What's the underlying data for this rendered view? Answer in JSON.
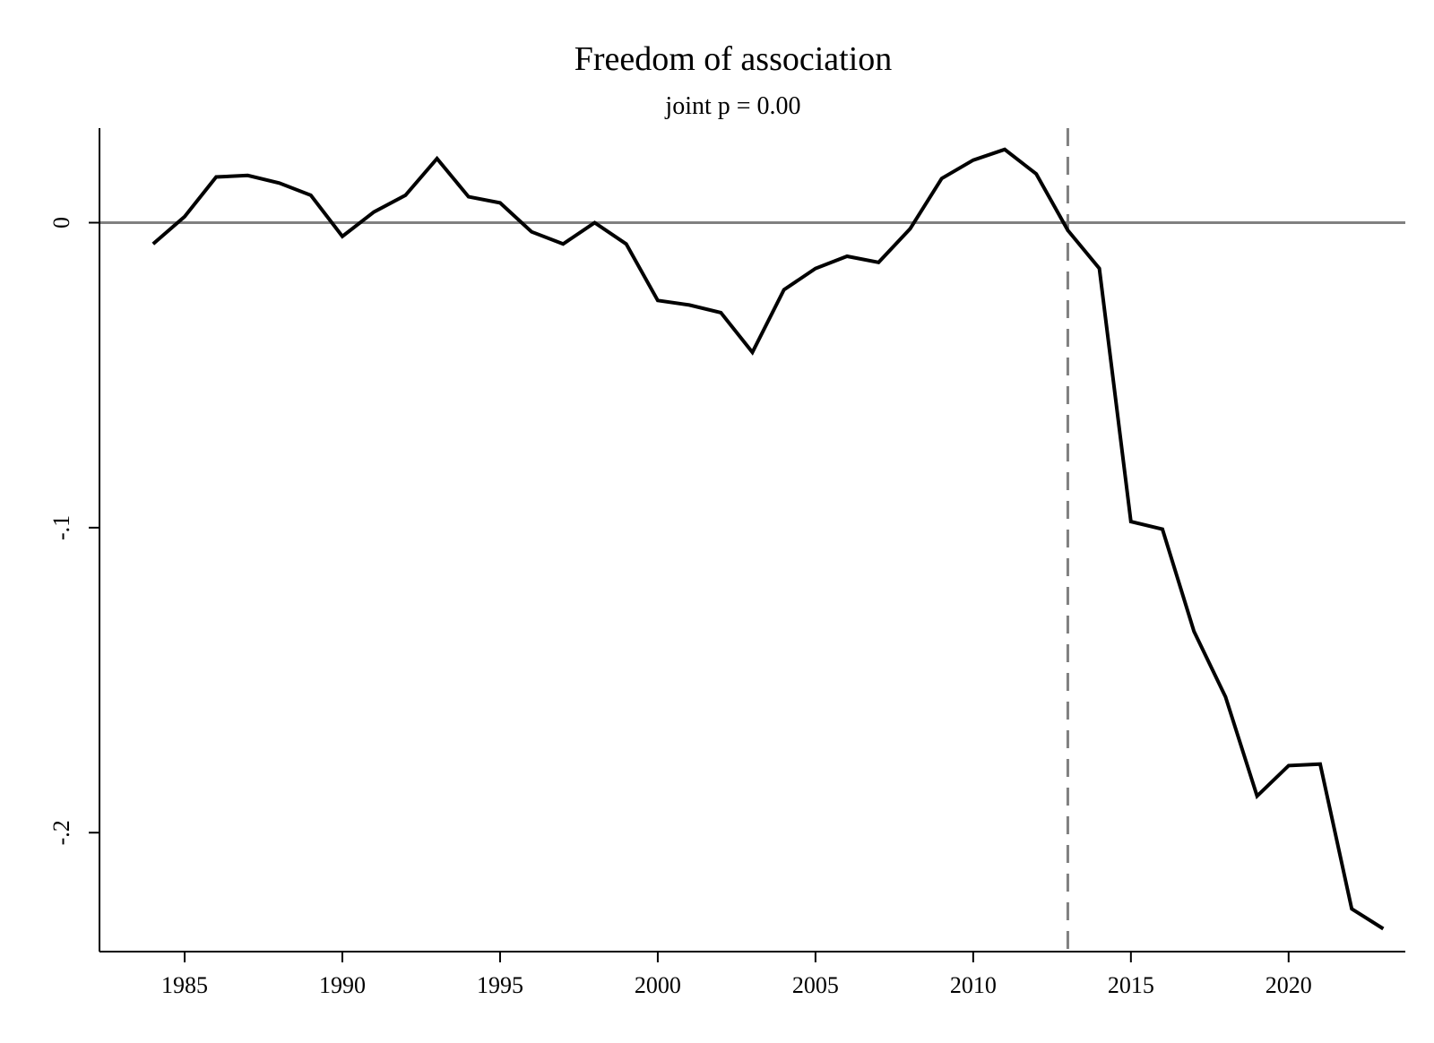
{
  "chart_data": {
    "type": "line",
    "title": "Freedom of association",
    "subtitle": "joint p = 0.00",
    "xlabel": "",
    "ylabel": "",
    "x_ticks": [
      1985,
      1990,
      1995,
      2000,
      2005,
      2010,
      2015,
      2020
    ],
    "y_ticks": [
      {
        "value": 0,
        "label": "0"
      },
      {
        "value": -0.1,
        "label": "-.1"
      },
      {
        "value": -0.2,
        "label": "-.2"
      }
    ],
    "xlim": [
      1982.3,
      2023.7
    ],
    "ylim": [
      -0.239,
      0.031
    ],
    "grid": false,
    "reference_line_y": 0,
    "reference_line_x": 2013,
    "colors": {
      "line": "#000000",
      "reference": "#808080"
    },
    "series": [
      {
        "x": [
          1984,
          1985,
          1986,
          1987,
          1988,
          1989,
          1990,
          1991,
          1992,
          1993,
          1994,
          1995,
          1996,
          1997,
          1998,
          1999,
          2000,
          2001,
          2002,
          2003,
          2004,
          2005,
          2006,
          2007,
          2008,
          2009,
          2010,
          2011,
          2012,
          2013,
          2014,
          2015,
          2016,
          2017,
          2018,
          2019,
          2020,
          2021,
          2022,
          2023
        ],
        "values": [
          -0.007,
          0.002,
          0.015,
          0.0155,
          0.013,
          0.009,
          -0.0045,
          0.0035,
          0.009,
          0.021,
          0.0085,
          0.0065,
          -0.003,
          -0.007,
          0.0,
          -0.007,
          -0.0255,
          -0.027,
          -0.0295,
          -0.0425,
          -0.022,
          -0.015,
          -0.011,
          -0.013,
          -0.002,
          0.0145,
          0.0205,
          0.024,
          0.016,
          -0.0025,
          -0.015,
          -0.098,
          -0.1005,
          -0.134,
          -0.1555,
          -0.188,
          -0.178,
          -0.1775,
          -0.225,
          -0.2315
        ]
      }
    ]
  }
}
